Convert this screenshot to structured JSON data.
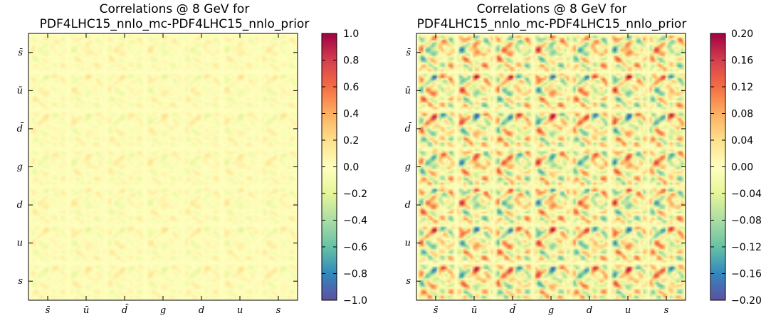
{
  "chart_data": [
    {
      "type": "heatmap",
      "title": "Correlations @ 8 GeV for\nPDF4LHC15_nnlo_mc-PDF4LHC15_nnlo_prior",
      "x_tick_labels": [
        "s̄",
        "ū",
        "d̄",
        "g",
        "d",
        "u",
        "s"
      ],
      "y_tick_labels": [
        "s̄",
        "ū",
        "d̄",
        "g",
        "d",
        "u",
        "s"
      ],
      "colorbar": {
        "range": [
          -1.0,
          1.0
        ],
        "ticks": [
          "1.0",
          "0.8",
          "0.6",
          "0.4",
          "0.2",
          "0.0",
          "−0.2",
          "−0.4",
          "−0.6",
          "−0.8",
          "−1.0"
        ],
        "colormap": "Spectral_r"
      },
      "amplitude": 0.2
    },
    {
      "type": "heatmap",
      "title": "Correlations @ 8 GeV for\nPDF4LHC15_nnlo_mc-PDF4LHC15_nnlo_prior",
      "x_tick_labels": [
        "s̄",
        "ū",
        "d̄",
        "g",
        "d",
        "u",
        "s"
      ],
      "y_tick_labels": [
        "s̄",
        "ū",
        "d̄",
        "g",
        "d",
        "u",
        "s"
      ],
      "colorbar": {
        "range": [
          -0.2,
          0.2
        ],
        "ticks": [
          "0.20",
          "0.16",
          "0.12",
          "0.08",
          "0.04",
          "0.00",
          "−0.04",
          "−0.08",
          "−0.12",
          "−0.16",
          "−0.20"
        ],
        "colormap": "Spectral_r"
      },
      "amplitude": 0.2
    }
  ]
}
